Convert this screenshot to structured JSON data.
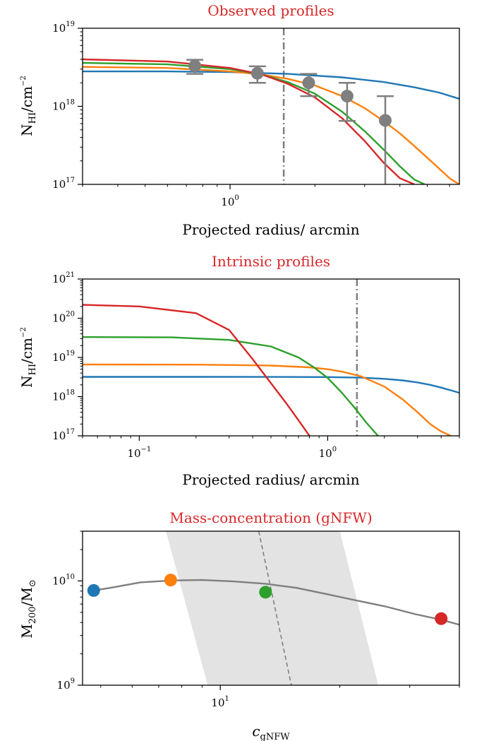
{
  "colors": {
    "blue": "#1f77b4",
    "orange": "#ff7f0e",
    "green": "#2ca02c",
    "red": "#d62728",
    "gray": "#7f7f7f",
    "band": "#e3e3e3"
  },
  "chart_data": [
    {
      "type": "line",
      "title": "Observed profiles",
      "xlabel": "Projected radius/ arcmin",
      "ylabel": "N_HI/cm^-2",
      "xscale": "log",
      "yscale": "log",
      "xlim": [
        0.3,
        6.5
      ],
      "ylim": [
        1e+17,
        1e+19
      ],
      "x_ticks": [
        {
          "value": 1,
          "base": "10",
          "exp": "0"
        }
      ],
      "y_ticks": [
        {
          "value": 1e+17,
          "base": "10",
          "exp": "17"
        },
        {
          "value": 1e+18,
          "base": "10",
          "exp": "18"
        },
        {
          "value": 1e+19,
          "base": "10",
          "exp": "19"
        }
      ],
      "vline": 1.55,
      "series": [
        {
          "color": "blue",
          "x": [
            0.3,
            0.6,
            1.0,
            1.6,
            2.5,
            3.5,
            4.5,
            5.5,
            6.5
          ],
          "y": [
            2.8e+18,
            2.8e+18,
            2.75e+18,
            2.6e+18,
            2.35e+18,
            2.05e+18,
            1.75e+18,
            1.5e+18,
            1.25e+18
          ]
        },
        {
          "color": "orange",
          "x": [
            0.3,
            0.6,
            1.0,
            1.3,
            1.6,
            2.0,
            2.5,
            3.0,
            3.5,
            4.0,
            4.5,
            5.0,
            5.5,
            6.0,
            6.5
          ],
          "y": [
            3.2e+18,
            3.1e+18,
            2.8e+18,
            2.55e+18,
            2.25e+18,
            1.85e+18,
            1.35e+18,
            9.5e+17,
            6.5e+17,
            4.5e+17,
            3.1e+17,
            2.2e+17,
            1.6e+17,
            1.2e+17,
            1e+17
          ]
        },
        {
          "color": "green",
          "x": [
            0.3,
            0.6,
            1.0,
            1.3,
            1.6,
            2.0,
            2.5,
            3.0,
            3.5,
            4.0,
            4.5,
            4.9
          ],
          "y": [
            3.6e+18,
            3.45e+18,
            3e+18,
            2.55e+18,
            2.05e+18,
            1.45e+18,
            8.5e+17,
            4.8e+17,
            2.8e+17,
            1.7e+17,
            1.15e+17,
            1e+17
          ]
        },
        {
          "color": "red",
          "x": [
            0.3,
            0.6,
            1.0,
            1.3,
            1.6,
            2.0,
            2.5,
            3.0,
            3.5,
            4.0,
            4.5
          ],
          "y": [
            4e+18,
            3.75e+18,
            3.1e+18,
            2.55e+18,
            1.95e+18,
            1.3e+18,
            7e+17,
            3.6e+17,
            1.9e+17,
            1.2e+17,
            1e+17
          ]
        }
      ],
      "points": {
        "color": "gray",
        "x": [
          0.75,
          1.25,
          1.9,
          2.6,
          3.55
        ],
        "y": [
          3.3e+18,
          2.65e+18,
          2e+18,
          1.35e+18,
          6.6e+17
        ],
        "y_low": [
          2.6e+18,
          2e+18,
          1.35e+18,
          6.5e+17,
          1e+17
        ],
        "y_high": [
          3.95e+18,
          3.25e+18,
          2.6e+18,
          2e+18,
          1.35e+18
        ]
      }
    },
    {
      "type": "line",
      "title": "Intrinsic profiles",
      "xlabel": "Projected radius/ arcmin",
      "ylabel": "N_HI/cm^-2",
      "xscale": "log",
      "yscale": "log",
      "xlim": [
        0.05,
        5
      ],
      "ylim": [
        1e+17,
        1e+21
      ],
      "x_ticks": [
        {
          "value": 0.1,
          "base": "10",
          "exp": "−1"
        },
        {
          "value": 1,
          "base": "10",
          "exp": "0"
        }
      ],
      "y_ticks": [
        {
          "value": 1e+17,
          "base": "10",
          "exp": "17"
        },
        {
          "value": 1e+18,
          "base": "10",
          "exp": "18"
        },
        {
          "value": 1e+19,
          "base": "10",
          "exp": "19"
        },
        {
          "value": 1e+20,
          "base": "10",
          "exp": "20"
        },
        {
          "value": 1e+21,
          "base": "10",
          "exp": "21"
        }
      ],
      "vline": 1.43,
      "series": [
        {
          "color": "blue",
          "x": [
            0.05,
            0.2,
            0.5,
            1.0,
            1.5,
            2.0,
            2.5,
            3.0,
            3.5,
            4.0,
            4.5,
            5.0
          ],
          "y": [
            3.2e+18,
            3.2e+18,
            3.18e+18,
            3.15e+18,
            3.05e+18,
            2.85e+18,
            2.6e+18,
            2.3e+18,
            2e+18,
            1.7e+18,
            1.45e+18,
            1.25e+18
          ]
        },
        {
          "color": "orange",
          "x": [
            0.05,
            0.2,
            0.5,
            0.8,
            1.0,
            1.2,
            1.5,
            2.0,
            2.5,
            3.0,
            3.5,
            4.0,
            4.5
          ],
          "y": [
            6.6e+18,
            6.55e+18,
            6.2e+18,
            5.6e+18,
            5e+18,
            4.3e+18,
            3.3e+18,
            1.8e+18,
            8.5e+17,
            4e+17,
            2e+17,
            1.3e+17,
            1e+17
          ]
        },
        {
          "color": "green",
          "x": [
            0.05,
            0.15,
            0.3,
            0.5,
            0.7,
            0.85,
            1.0,
            1.2,
            1.4,
            1.6,
            1.85
          ],
          "y": [
            3.3e+19,
            3.25e+19,
            2.8e+19,
            1.9e+19,
            1e+19,
            5.5e+18,
            3e+18,
            1.2e+18,
            5e+17,
            2.2e+17,
            1e+17
          ]
        },
        {
          "color": "red",
          "x": [
            0.05,
            0.1,
            0.2,
            0.3,
            0.4,
            0.5,
            0.6,
            0.7,
            0.8
          ],
          "y": [
            2.2e+20,
            2e+20,
            1.35e+20,
            5e+19,
            9e+18,
            2.2e+18,
            7e+17,
            2.5e+17,
            1e+17
          ]
        }
      ]
    },
    {
      "type": "scatter",
      "title": "Mass-concentration (gNFW)",
      "xlabel": "c_gNFW",
      "ylabel": "M_200/M_⊙",
      "xscale": "log",
      "yscale": "log",
      "xlim": [
        4.5,
        40
      ],
      "ylim": [
        1000000000.0,
        30000000000.0
      ],
      "x_ticks": [
        {
          "value": 10,
          "base": "10",
          "exp": "1"
        }
      ],
      "y_ticks": [
        {
          "value": 1000000000.0,
          "base": "10",
          "exp": "9"
        },
        {
          "value": 10000000000.0,
          "base": "10",
          "exp": "10"
        }
      ],
      "relation": {
        "x": [
          12.5,
          15.1
        ],
        "y": [
          30000000000.0,
          1000000000.0
        ]
      },
      "band": {
        "upper": [
          [
            7.3,
            30000000000.0
          ],
          [
            9.3,
            1000000000.0
          ]
        ],
        "lower": [
          [
            20.0,
            30000000000.0
          ],
          [
            25.0,
            1000000000.0
          ]
        ]
      },
      "series": [
        {
          "color": "gray",
          "x": [
            4.8,
            5.3,
            6.3,
            7.5,
            9.0,
            10.8,
            13.0,
            15.5,
            18.5,
            22.0,
            26.0,
            31.0,
            36.0,
            40.0
          ],
          "y": [
            8100000000.0,
            8600000000.0,
            9700000000.0,
            10100000000.0,
            10200000000.0,
            9900000000.0,
            9400000000.0,
            8600000000.0,
            7500000000.0,
            6500000000.0,
            5700000000.0,
            4800000000.0,
            4250000000.0,
            3800000000.0
          ]
        }
      ],
      "points": [
        {
          "color": "blue",
          "x": 4.8,
          "y": 8100000000.0
        },
        {
          "color": "orange",
          "x": 7.5,
          "y": 10200000000.0
        },
        {
          "color": "green",
          "x": 13.0,
          "y": 7800000000.0
        },
        {
          "color": "red",
          "x": 36.0,
          "y": 4350000000.0
        }
      ]
    }
  ]
}
